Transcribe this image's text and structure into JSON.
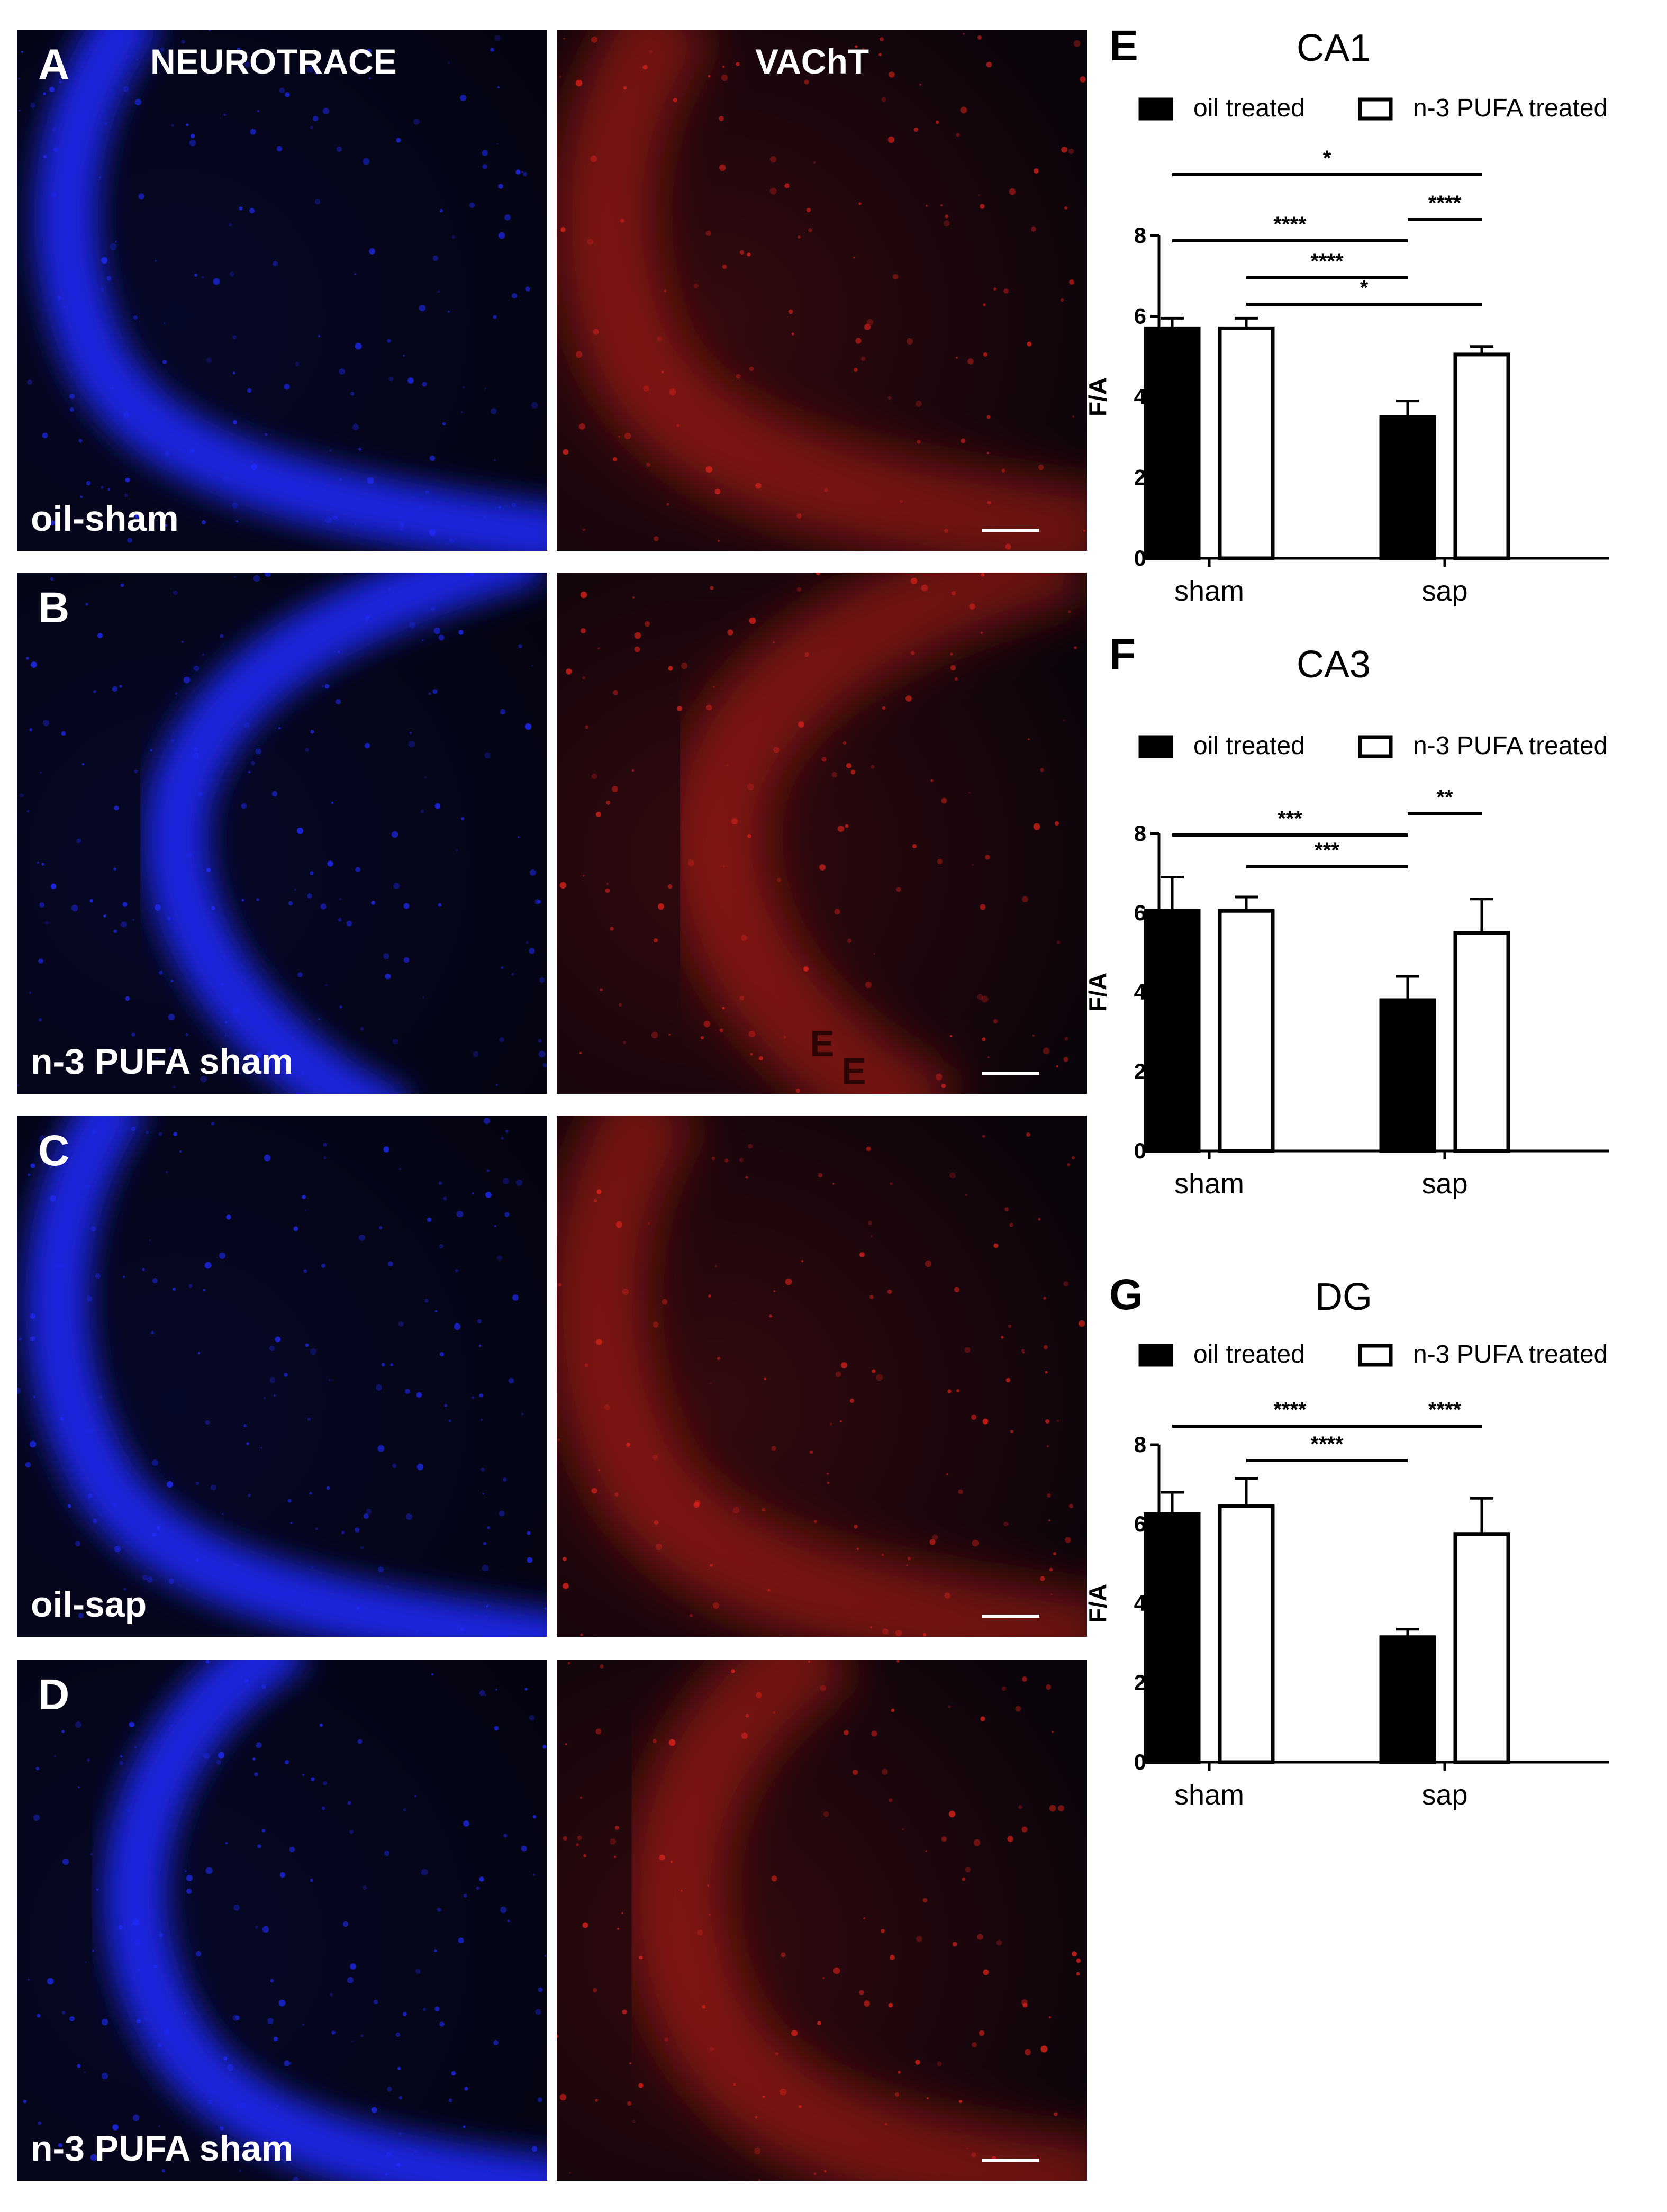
{
  "micrographs": {
    "column_titles": [
      "NEUROTRACE",
      "VAChT"
    ],
    "rows": [
      {
        "letter": "A",
        "label": "oil-sham"
      },
      {
        "letter": "B",
        "label": "n-3 PUFA sham"
      },
      {
        "letter": "C",
        "label": "oil-sap"
      },
      {
        "letter": "D",
        "label": "n-3 PUFA sham"
      }
    ],
    "stray_letters": [
      "E",
      "E"
    ],
    "colors": {
      "neurotrace": "#1f2cff",
      "vacht": "#e0221a",
      "background": "#03030a"
    }
  },
  "chart_data": [
    {
      "panel": "E",
      "title": "CA1",
      "type": "bar",
      "categories": [
        "sham",
        "sap"
      ],
      "ylabel": "F/A",
      "ylim": [
        0,
        8
      ],
      "yticks": [
        0,
        2,
        4,
        6,
        8
      ],
      "legend_position": "top",
      "series": [
        {
          "name": "oil treated",
          "fill": "#000000",
          "values": [
            5.7,
            3.5
          ],
          "errors": [
            0.25,
            0.4
          ]
        },
        {
          "name": "n-3 PUFA treated",
          "fill": "#ffffff",
          "values": [
            5.7,
            5.05
          ],
          "errors": [
            0.25,
            0.2
          ]
        }
      ],
      "significance": [
        {
          "label": "*",
          "from": [
            0,
            0
          ],
          "to": [
            1,
            1
          ]
        },
        {
          "label": "****",
          "from": [
            0,
            0
          ],
          "to": [
            1,
            0
          ]
        },
        {
          "label": "****",
          "from": [
            1,
            0
          ],
          "to": [
            1,
            1
          ]
        },
        {
          "label": "****",
          "from": [
            0,
            1
          ],
          "to": [
            1,
            0
          ]
        },
        {
          "label": "*",
          "from": [
            0,
            1
          ],
          "to": [
            1,
            1
          ]
        }
      ]
    },
    {
      "panel": "F",
      "title": "CA3",
      "type": "bar",
      "categories": [
        "sham",
        "sap"
      ],
      "ylabel": "F/A",
      "ylim": [
        0,
        8
      ],
      "yticks": [
        0,
        2,
        4,
        6,
        8
      ],
      "legend_position": "top",
      "series": [
        {
          "name": "oil treated",
          "fill": "#000000",
          "values": [
            6.05,
            3.8
          ],
          "errors": [
            0.85,
            0.6
          ]
        },
        {
          "name": "n-3 PUFA treated",
          "fill": "#ffffff",
          "values": [
            6.05,
            5.5
          ],
          "errors": [
            0.35,
            0.85
          ]
        }
      ],
      "significance": [
        {
          "label": "***",
          "from": [
            0,
            0
          ],
          "to": [
            1,
            0
          ]
        },
        {
          "label": "**",
          "from": [
            1,
            0
          ],
          "to": [
            1,
            1
          ]
        },
        {
          "label": "***",
          "from": [
            0,
            1
          ],
          "to": [
            1,
            0
          ]
        }
      ]
    },
    {
      "panel": "G",
      "title": "DG",
      "type": "bar",
      "categories": [
        "sham",
        "sap"
      ],
      "ylabel": "F/A",
      "ylim": [
        0,
        8
      ],
      "yticks": [
        0,
        2,
        4,
        6,
        8
      ],
      "legend_position": "top",
      "series": [
        {
          "name": "oil treated",
          "fill": "#000000",
          "values": [
            6.25,
            3.15
          ],
          "errors": [
            0.55,
            0.2
          ]
        },
        {
          "name": "n-3 PUFA treated",
          "fill": "#ffffff",
          "values": [
            6.45,
            5.75
          ],
          "errors": [
            0.7,
            0.9
          ]
        }
      ],
      "significance": [
        {
          "label": "****",
          "from": [
            0,
            0
          ],
          "to": [
            1,
            0
          ]
        },
        {
          "label": "****",
          "from": [
            1,
            0
          ],
          "to": [
            1,
            1
          ]
        },
        {
          "label": "****",
          "from": [
            0,
            1
          ],
          "to": [
            1,
            0
          ]
        }
      ]
    }
  ]
}
